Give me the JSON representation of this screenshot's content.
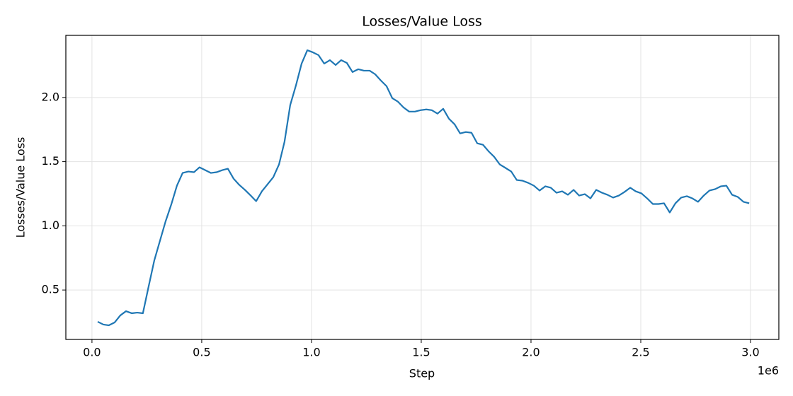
{
  "chart_data": {
    "type": "line",
    "title": "Losses/Value Loss",
    "xlabel": "Step",
    "ylabel": "Losses/Value Loss",
    "x_offset_label": "1e6",
    "x": [
      0.026,
      0.052,
      0.077,
      0.103,
      0.129,
      0.155,
      0.181,
      0.206,
      0.232,
      0.258,
      0.284,
      0.31,
      0.335,
      0.361,
      0.387,
      0.413,
      0.439,
      0.465,
      0.49,
      0.516,
      0.542,
      0.568,
      0.594,
      0.619,
      0.645,
      0.671,
      0.697,
      0.723,
      0.748,
      0.774,
      0.8,
      0.826,
      0.852,
      0.877,
      0.903,
      0.929,
      0.955,
      0.981,
      1.006,
      1.032,
      1.058,
      1.084,
      1.11,
      1.135,
      1.161,
      1.187,
      1.213,
      1.239,
      1.265,
      1.29,
      1.316,
      1.342,
      1.368,
      1.394,
      1.419,
      1.445,
      1.471,
      1.497,
      1.523,
      1.548,
      1.574,
      1.6,
      1.626,
      1.652,
      1.677,
      1.703,
      1.729,
      1.755,
      1.781,
      1.806,
      1.832,
      1.858,
      1.884,
      1.91,
      1.935,
      1.961,
      1.987,
      2.013,
      2.039,
      2.065,
      2.09,
      2.116,
      2.142,
      2.168,
      2.194,
      2.219,
      2.245,
      2.271,
      2.297,
      2.323,
      2.348,
      2.374,
      2.4,
      2.426,
      2.452,
      2.477,
      2.503,
      2.529,
      2.555,
      2.581,
      2.606,
      2.632,
      2.658,
      2.684,
      2.71,
      2.735,
      2.761,
      2.787,
      2.813,
      2.839,
      2.865,
      2.89,
      2.916,
      2.942,
      2.968,
      2.994
    ],
    "series": [
      {
        "color": "#1f77b4",
        "values": [
          0.253,
          0.231,
          0.225,
          0.247,
          0.302,
          0.335,
          0.319,
          0.324,
          0.319,
          0.527,
          0.731,
          0.885,
          1.033,
          1.165,
          1.313,
          1.412,
          1.423,
          1.418,
          1.456,
          1.434,
          1.412,
          1.418,
          1.434,
          1.445,
          1.368,
          1.319,
          1.28,
          1.236,
          1.192,
          1.269,
          1.324,
          1.379,
          1.478,
          1.654,
          1.94,
          2.093,
          2.264,
          2.368,
          2.352,
          2.33,
          2.264,
          2.291,
          2.253,
          2.291,
          2.269,
          2.198,
          2.22,
          2.209,
          2.209,
          2.181,
          2.132,
          2.088,
          1.995,
          1.967,
          1.923,
          1.89,
          1.89,
          1.901,
          1.907,
          1.901,
          1.874,
          1.912,
          1.835,
          1.791,
          1.72,
          1.731,
          1.725,
          1.643,
          1.632,
          1.582,
          1.538,
          1.478,
          1.451,
          1.423,
          1.357,
          1.352,
          1.335,
          1.313,
          1.275,
          1.308,
          1.297,
          1.258,
          1.269,
          1.242,
          1.28,
          1.236,
          1.247,
          1.214,
          1.28,
          1.258,
          1.242,
          1.22,
          1.236,
          1.264,
          1.297,
          1.269,
          1.253,
          1.214,
          1.17,
          1.17,
          1.176,
          1.104,
          1.176,
          1.22,
          1.231,
          1.214,
          1.187,
          1.236,
          1.275,
          1.286,
          1.308,
          1.313,
          1.242,
          1.225,
          1.187,
          1.176
        ]
      }
    ],
    "xlim": [
      -0.119,
      3.129
    ],
    "ylim": [
      0.115,
      2.484
    ],
    "xticks": [
      {
        "value": 0,
        "label": "0.0"
      },
      0.5,
      {
        "value": 1,
        "label": "1.0"
      },
      1.5,
      {
        "value": 2,
        "label": "2.0"
      },
      2.5,
      {
        "value": 3,
        "label": "3.0"
      }
    ],
    "yticks": [
      0.5,
      {
        "value": 1,
        "label": "1.0"
      },
      1.5,
      {
        "value": 2,
        "label": "2.0"
      }
    ],
    "grid": true
  }
}
